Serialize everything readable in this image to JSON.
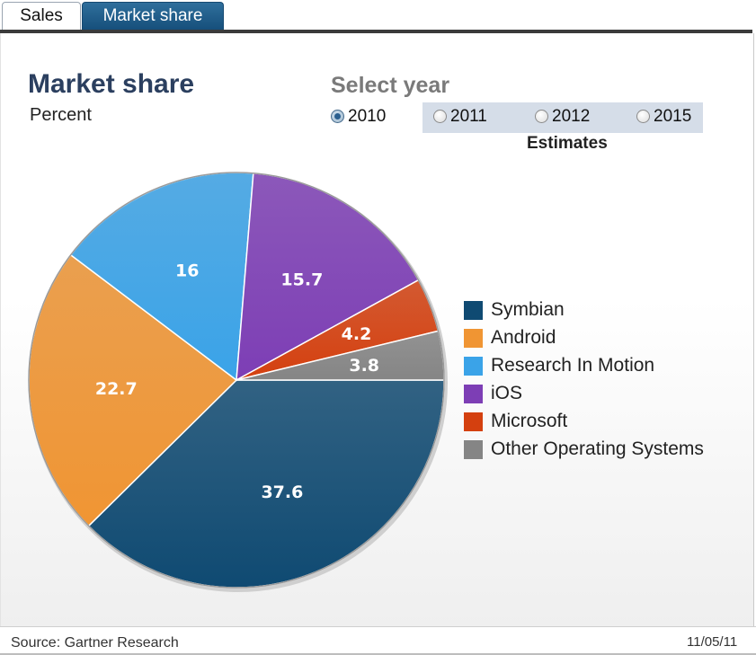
{
  "tabs": [
    {
      "label": "Sales",
      "active": false
    },
    {
      "label": "Market share",
      "active": true
    }
  ],
  "panel": {
    "title": "Market share",
    "subtitle": "Percent",
    "select_year_label": "Select year",
    "years": [
      {
        "label": "2010",
        "selected": true
      },
      {
        "label": "2011",
        "selected": false
      },
      {
        "label": "2012",
        "selected": false
      },
      {
        "label": "2015",
        "selected": false
      }
    ],
    "estimates_label": "Estimates"
  },
  "chart_data": {
    "type": "pie",
    "title": "Market share",
    "subtitle": "Percent",
    "year": "2010",
    "slices": [
      {
        "name": "Symbian",
        "value": 37.6,
        "label": "37.6",
        "color": "#0f4a72"
      },
      {
        "name": "Android",
        "value": 22.7,
        "label": "22.7",
        "color": "#f09533"
      },
      {
        "name": "Research In Motion",
        "value": 16,
        "label": "16",
        "color": "#3aa3e8"
      },
      {
        "name": "iOS",
        "value": 15.7,
        "label": "15.7",
        "color": "#7d3eb5"
      },
      {
        "name": "Microsoft",
        "value": 4.2,
        "label": "4.2",
        "color": "#d4400f"
      },
      {
        "name": "Other Operating Systems",
        "value": 3.8,
        "label": "3.8",
        "color": "#858585"
      }
    ],
    "legend_position": "right"
  },
  "footer": {
    "source": "Source: Gartner Research",
    "date": "11/05/11"
  }
}
